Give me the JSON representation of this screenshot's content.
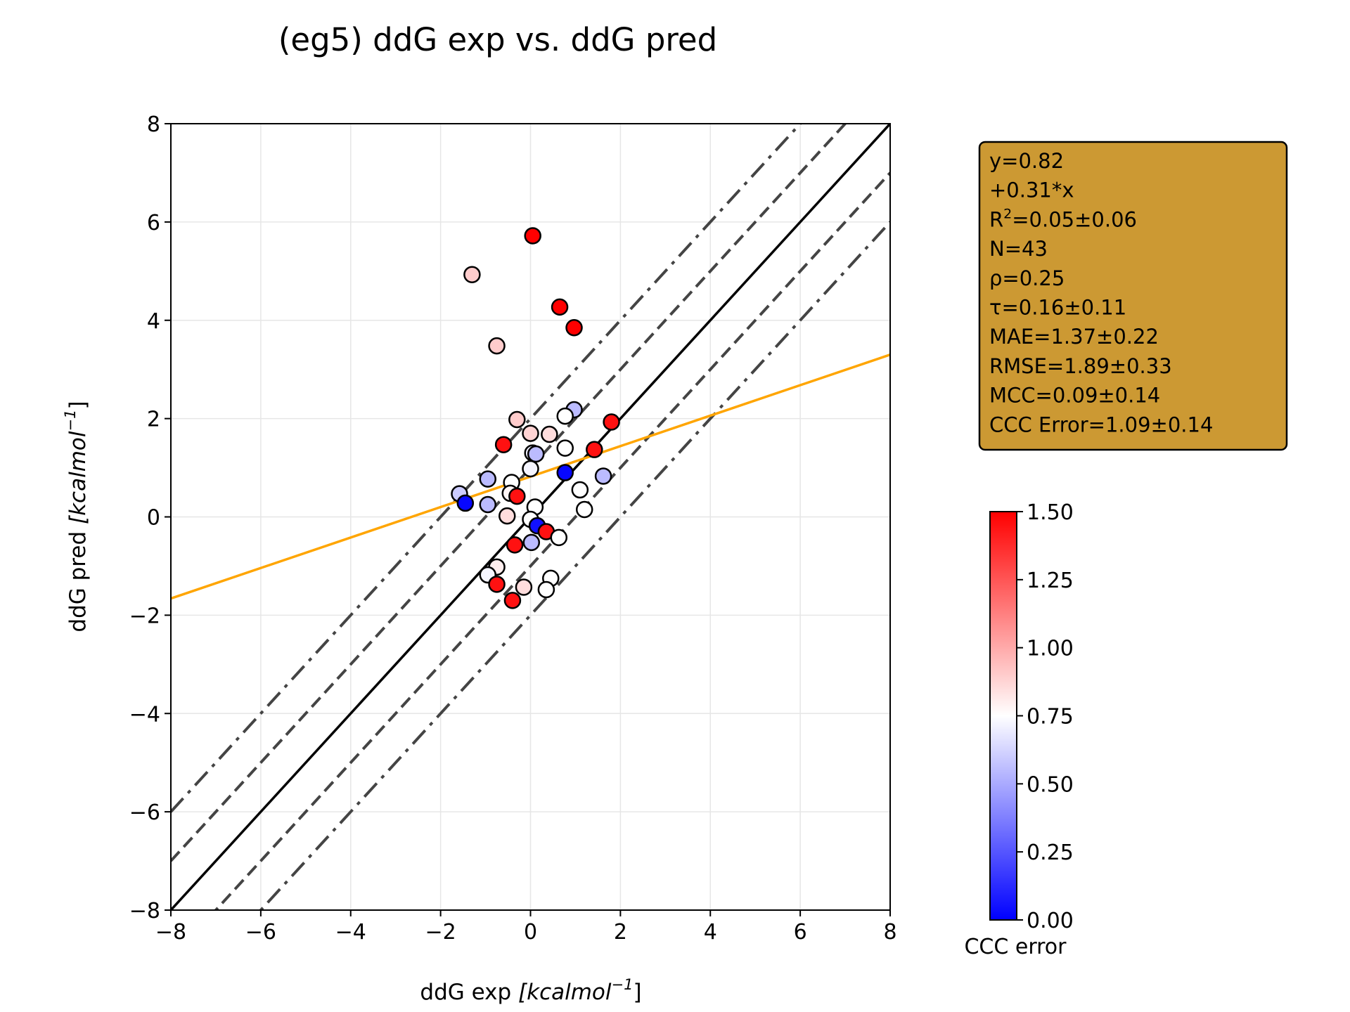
{
  "chart_data": {
    "type": "scatter",
    "title": "(eg5) ddG exp vs. ddG pred",
    "xlabel_main": "ddG exp ",
    "xlabel_unit": "[kcalmol",
    "xlabel_sup": "−1",
    "xlabel_close": "]",
    "ylabel_main": "ddG pred ",
    "ylabel_unit": "[kcalmol",
    "ylabel_sup": "−1",
    "ylabel_close": "]",
    "xlim": [
      -8,
      8
    ],
    "ylim": [
      -8,
      8
    ],
    "xticks": [
      -8,
      -6,
      -4,
      -2,
      0,
      2,
      4,
      6,
      8
    ],
    "yticks": [
      -8,
      -6,
      -4,
      -2,
      0,
      2,
      4,
      6,
      8
    ],
    "xtick_labels": [
      "−8",
      "−6",
      "−4",
      "−2",
      "0",
      "2",
      "4",
      "6",
      "8"
    ],
    "ytick_labels": [
      "−8",
      "−6",
      "−4",
      "−2",
      "0",
      "2",
      "4",
      "6",
      "8"
    ],
    "grid": true,
    "reference_lines": {
      "identity": {
        "slope": 1,
        "intercept": 0,
        "style": "solid",
        "color": "#000000"
      },
      "dashed_offsets": [
        1,
        -1
      ],
      "dashdot_offsets": [
        2,
        -2
      ],
      "offset_color": "#444444"
    },
    "fit_line": {
      "intercept": 0.82,
      "slope": 0.31,
      "color": "#FFA500"
    },
    "points": [
      {
        "x": 0.05,
        "y": 5.72,
        "c": 1.5
      },
      {
        "x": -1.3,
        "y": 4.93,
        "c": 0.9
      },
      {
        "x": 0.65,
        "y": 4.27,
        "c": 1.5
      },
      {
        "x": 0.97,
        "y": 3.85,
        "c": 1.5
      },
      {
        "x": -0.75,
        "y": 3.48,
        "c": 0.9
      },
      {
        "x": -0.3,
        "y": 1.98,
        "c": 0.9
      },
      {
        "x": 0.97,
        "y": 2.18,
        "c": 0.55
      },
      {
        "x": 0.77,
        "y": 2.05,
        "c": 0.75
      },
      {
        "x": 1.8,
        "y": 1.93,
        "c": 1.45
      },
      {
        "x": 0.0,
        "y": 1.7,
        "c": 0.88
      },
      {
        "x": 0.42,
        "y": 1.68,
        "c": 0.85
      },
      {
        "x": -0.6,
        "y": 1.47,
        "c": 1.45
      },
      {
        "x": 0.77,
        "y": 1.4,
        "c": 0.75
      },
      {
        "x": 1.42,
        "y": 1.37,
        "c": 1.45
      },
      {
        "x": 0.05,
        "y": 1.3,
        "c": 0.7
      },
      {
        "x": 0.12,
        "y": 1.28,
        "c": 0.55
      },
      {
        "x": 0.0,
        "y": 0.98,
        "c": 0.72
      },
      {
        "x": 0.77,
        "y": 0.9,
        "c": 0.02
      },
      {
        "x": 1.62,
        "y": 0.83,
        "c": 0.55
      },
      {
        "x": -0.95,
        "y": 0.77,
        "c": 0.55
      },
      {
        "x": -0.42,
        "y": 0.7,
        "c": 0.75
      },
      {
        "x": 1.1,
        "y": 0.55,
        "c": 0.75
      },
      {
        "x": -1.58,
        "y": 0.47,
        "c": 0.6
      },
      {
        "x": -0.45,
        "y": 0.48,
        "c": 0.78
      },
      {
        "x": -0.3,
        "y": 0.42,
        "c": 1.45
      },
      {
        "x": -1.45,
        "y": 0.28,
        "c": 0.02
      },
      {
        "x": -0.95,
        "y": 0.25,
        "c": 0.55
      },
      {
        "x": 0.1,
        "y": 0.2,
        "c": 0.75
      },
      {
        "x": 1.2,
        "y": 0.15,
        "c": 0.75
      },
      {
        "x": -0.52,
        "y": 0.02,
        "c": 0.85
      },
      {
        "x": 0.0,
        "y": -0.05,
        "c": 0.75
      },
      {
        "x": 0.15,
        "y": -0.18,
        "c": 0.05
      },
      {
        "x": 0.35,
        "y": -0.3,
        "c": 1.45
      },
      {
        "x": 0.63,
        "y": -0.42,
        "c": 0.75
      },
      {
        "x": -0.35,
        "y": -0.57,
        "c": 1.45
      },
      {
        "x": 0.02,
        "y": -0.52,
        "c": 0.55
      },
      {
        "x": -0.75,
        "y": -1.02,
        "c": 0.8
      },
      {
        "x": -0.95,
        "y": -1.18,
        "c": 0.72
      },
      {
        "x": 0.45,
        "y": -1.25,
        "c": 0.75
      },
      {
        "x": -0.75,
        "y": -1.37,
        "c": 1.45
      },
      {
        "x": -0.15,
        "y": -1.43,
        "c": 0.85
      },
      {
        "x": 0.35,
        "y": -1.48,
        "c": 0.75
      },
      {
        "x": -0.4,
        "y": -1.7,
        "c": 1.45
      }
    ],
    "stats_box": {
      "background": "#CC9933",
      "lines": [
        {
          "text": "y=0.82"
        },
        {
          "text": " +0.31*x"
        },
        {
          "pre": "R",
          "sup": "2",
          "post": "=0.05±0.06"
        },
        {
          "text": "N=43"
        },
        {
          "text": "ρ=0.25"
        },
        {
          "text": "τ=0.16±0.11"
        },
        {
          "text": "MAE=1.37±0.22"
        },
        {
          "text": "RMSE=1.89±0.33"
        },
        {
          "text": "MCC=0.09±0.14"
        },
        {
          "text": "CCC Error=1.09±0.14"
        }
      ]
    },
    "colorbar": {
      "label": "CCC error",
      "range": [
        0,
        1.5
      ],
      "ticks": [
        0,
        0.25,
        0.5,
        0.75,
        1.0,
        1.25,
        1.5
      ],
      "tick_labels": [
        "0.00",
        "0.25",
        "0.50",
        "0.75",
        "1.00",
        "1.25",
        "1.50"
      ],
      "colors": [
        "#0000FF",
        "#FFFFFF",
        "#FF0000"
      ]
    }
  }
}
